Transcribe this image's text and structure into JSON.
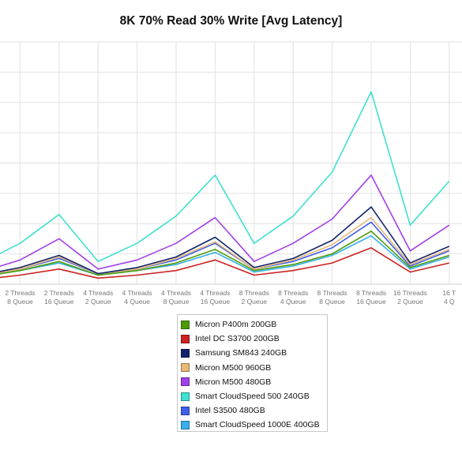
{
  "chart_data": {
    "type": "line",
    "title": "8K 70% Read 30% Write [Avg Latency]",
    "xlabel": "",
    "ylabel": "",
    "grid": true,
    "legend_position": "bottom-center",
    "categories": [
      [
        "Threads",
        "Queue"
      ],
      [
        "2 Threads",
        "8 Queue"
      ],
      [
        "2 Threads",
        "16 Queue"
      ],
      [
        "4 Threads",
        "2 Queue"
      ],
      [
        "4 Threads",
        "4 Queue"
      ],
      [
        "4 Threads",
        "8 Queue"
      ],
      [
        "4 Threads",
        "16 Queue"
      ],
      [
        "8 Threads",
        "2 Queue"
      ],
      [
        "8 Threads",
        "4 Queue"
      ],
      [
        "8 Threads",
        "8 Queue"
      ],
      [
        "8 Threads",
        "16 Queue"
      ],
      [
        "16 Threads",
        "2 Queue"
      ],
      [
        "16 T",
        "4 Q"
      ]
    ],
    "ylim": [
      0,
      8
    ],
    "series": [
      {
        "name": "Micron P400m 200GB",
        "color": "#4e9a06",
        "values": [
          0.25,
          0.45,
          0.75,
          0.3,
          0.45,
          0.7,
          1.15,
          0.45,
          0.65,
          1.0,
          1.75,
          0.55,
          0.95
        ]
      },
      {
        "name": "Intel DC S3700 200GB",
        "color": "#cc2222",
        "values": [
          0.15,
          0.3,
          0.5,
          0.2,
          0.3,
          0.45,
          0.8,
          0.3,
          0.45,
          0.7,
          1.2,
          0.4,
          0.7
        ]
      },
      {
        "name": "Samsung SM843 240GB",
        "color": "#14246b",
        "values": [
          0.3,
          0.55,
          0.95,
          0.35,
          0.55,
          0.9,
          1.55,
          0.55,
          0.85,
          1.45,
          2.55,
          0.7,
          1.25
        ]
      },
      {
        "name": "Micron M500 960GB",
        "color": "#e8b878",
        "values": [
          0.3,
          0.5,
          0.9,
          0.35,
          0.5,
          0.85,
          1.4,
          0.5,
          0.8,
          1.3,
          2.2,
          0.65,
          1.15
        ]
      },
      {
        "name": "Micron M500 480GB",
        "color": "#a040e8",
        "values": [
          0.4,
          0.8,
          1.5,
          0.5,
          0.8,
          1.35,
          2.2,
          0.75,
          1.35,
          2.15,
          3.6,
          1.1,
          1.95
        ]
      },
      {
        "name": "Smart CloudSpeed 500 240GB",
        "color": "#40e0d0",
        "values": [
          0.7,
          1.35,
          2.3,
          0.75,
          1.35,
          2.25,
          3.6,
          1.35,
          2.25,
          3.7,
          6.35,
          1.95,
          3.4
        ]
      },
      {
        "name": "Intel S3500 480GB",
        "color": "#4060e8",
        "values": [
          0.3,
          0.5,
          0.85,
          0.35,
          0.5,
          0.8,
          1.35,
          0.5,
          0.75,
          1.2,
          2.05,
          0.6,
          1.1
        ]
      },
      {
        "name": "Smart CloudSpeed 1000E 400GB",
        "color": "#38b0e8",
        "values": [
          0.25,
          0.45,
          0.7,
          0.3,
          0.45,
          0.65,
          1.05,
          0.4,
          0.6,
          0.95,
          1.6,
          0.5,
          0.9
        ]
      }
    ]
  }
}
